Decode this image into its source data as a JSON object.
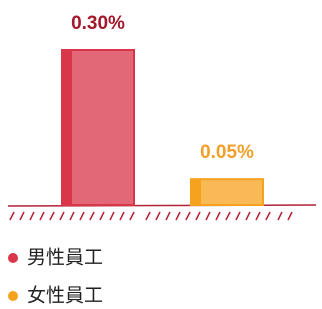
{
  "chart_data": {
    "type": "bar",
    "series": [
      {
        "name": "男性員工",
        "color": "#d9364a",
        "label_color": "#a3182b",
        "values": [
          0.3
        ],
        "value_labels": [
          "0.30%"
        ]
      },
      {
        "name": "女性員工",
        "color": "#f5a21e",
        "label_color": "#f0a02a",
        "values": [
          0.05
        ],
        "value_labels": [
          "0.05%"
        ]
      }
    ]
  }
}
